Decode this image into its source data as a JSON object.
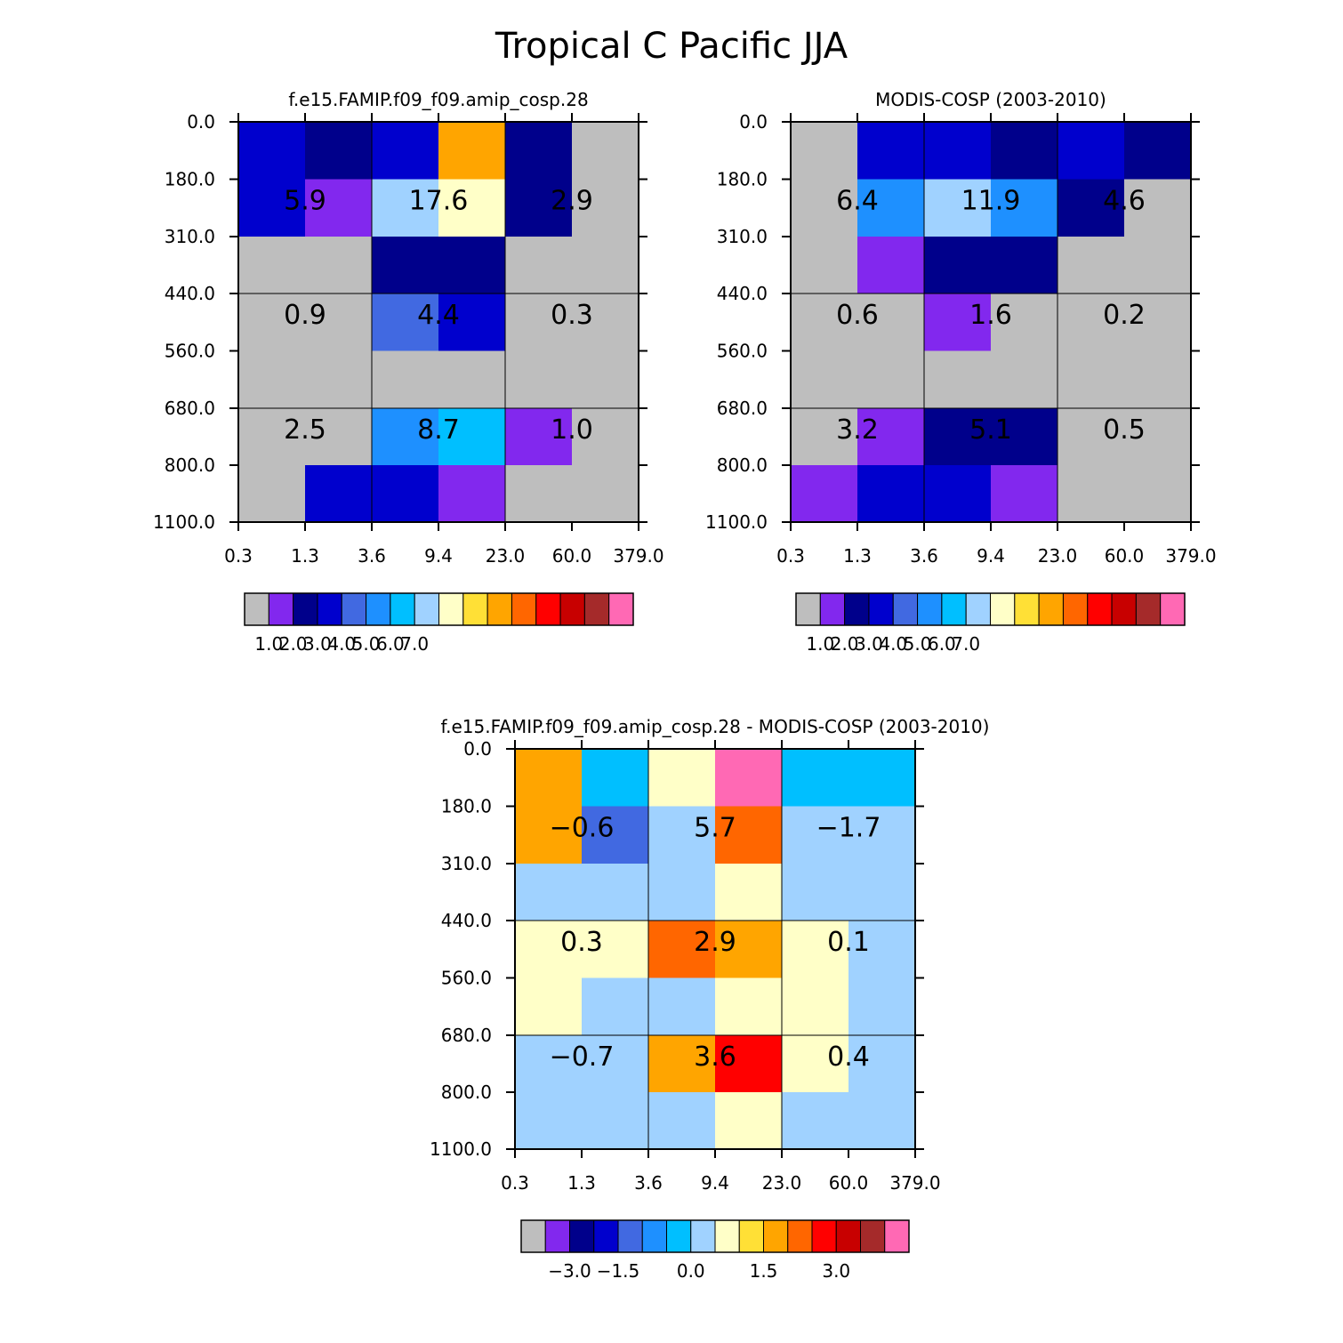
{
  "figure": {
    "title": "Tropical C Pacific JJA"
  },
  "palette": [
    "#bebebe",
    "#8228ee",
    "#00008b",
    "#0000cd",
    "#4169e1",
    "#1e90ff",
    "#00bfff",
    "#a0d2ff",
    "#ffffc8",
    "#ffe036",
    "#ffa500",
    "#ff6600",
    "#ff0000",
    "#c80000",
    "#a52a2a",
    "#ff69b4"
  ],
  "chart_data": [
    {
      "type": "heatmap",
      "title": "f.e15.FAMIP.f09_f09.amip_cosp.28",
      "x_tick_labels": [
        "0.3",
        "1.3",
        "3.6",
        "9.4",
        "23.0",
        "60.0",
        "379.0"
      ],
      "y_tick_labels": [
        "0.0",
        "180.0",
        "310.0",
        "440.0",
        "560.0",
        "680.0",
        "800.0",
        "1100.0"
      ],
      "cell_color_index": [
        [
          3,
          2,
          3,
          10,
          2,
          0
        ],
        [
          3,
          1,
          7,
          8,
          2,
          0
        ],
        [
          0,
          0,
          2,
          2,
          0,
          0
        ],
        [
          0,
          0,
          4,
          3,
          0,
          0
        ],
        [
          0,
          0,
          0,
          0,
          0,
          0
        ],
        [
          0,
          0,
          5,
          6,
          1,
          0
        ],
        [
          0,
          3,
          3,
          1,
          0,
          0
        ]
      ],
      "block_values": [
        [
          "5.9",
          "17.6",
          "2.9"
        ],
        [
          "0.9",
          "4.4",
          "0.3"
        ],
        [
          "2.5",
          "8.7",
          "1.0"
        ]
      ],
      "colorbar_labels": [
        "1.0",
        "2.0",
        "3.0",
        "4.0",
        "5.0",
        "6.0",
        "7.0"
      ]
    },
    {
      "type": "heatmap",
      "title": "MODIS-COSP (2003-2010)",
      "x_tick_labels": [
        "0.3",
        "1.3",
        "3.6",
        "9.4",
        "23.0",
        "60.0",
        "379.0"
      ],
      "y_tick_labels": [
        "0.0",
        "180.0",
        "310.0",
        "440.0",
        "560.0",
        "680.0",
        "800.0",
        "1100.0"
      ],
      "cell_color_index": [
        [
          0,
          3,
          3,
          2,
          3,
          2
        ],
        [
          0,
          5,
          7,
          5,
          2,
          0
        ],
        [
          0,
          1,
          2,
          2,
          0,
          0
        ],
        [
          0,
          0,
          1,
          0,
          0,
          0
        ],
        [
          0,
          0,
          0,
          0,
          0,
          0
        ],
        [
          0,
          1,
          2,
          2,
          0,
          0
        ],
        [
          1,
          3,
          3,
          1,
          0,
          0
        ]
      ],
      "block_values": [
        [
          "6.4",
          "11.9",
          "4.6"
        ],
        [
          "0.6",
          "1.6",
          "0.2"
        ],
        [
          "3.2",
          "5.1",
          "0.5"
        ]
      ],
      "colorbar_labels": [
        "1.0",
        "2.0",
        "3.0",
        "4.0",
        "5.0",
        "6.0",
        "7.0"
      ]
    },
    {
      "type": "heatmap",
      "title": "f.e15.FAMIP.f09_f09.amip_cosp.28 - MODIS-COSP (2003-2010)",
      "x_tick_labels": [
        "0.3",
        "1.3",
        "3.6",
        "9.4",
        "23.0",
        "60.0",
        "379.0"
      ],
      "y_tick_labels": [
        "0.0",
        "180.0",
        "310.0",
        "440.0",
        "560.0",
        "680.0",
        "800.0",
        "1100.0"
      ],
      "cell_color_index": [
        [
          10,
          6,
          8,
          15,
          6,
          6
        ],
        [
          10,
          4,
          7,
          11,
          7,
          7
        ],
        [
          7,
          7,
          7,
          8,
          7,
          7
        ],
        [
          8,
          8,
          11,
          10,
          8,
          7
        ],
        [
          8,
          7,
          7,
          8,
          8,
          7
        ],
        [
          7,
          7,
          10,
          12,
          8,
          7
        ],
        [
          7,
          7,
          7,
          8,
          7,
          7
        ]
      ],
      "block_values": [
        [
          "−0.6",
          "5.7",
          "−1.7"
        ],
        [
          "0.3",
          "2.9",
          "0.1"
        ],
        [
          "−0.7",
          "3.6",
          "0.4"
        ]
      ],
      "colorbar_labels": [
        "−3.0",
        "−1.5",
        "0.0",
        "1.5",
        "3.0"
      ]
    }
  ]
}
